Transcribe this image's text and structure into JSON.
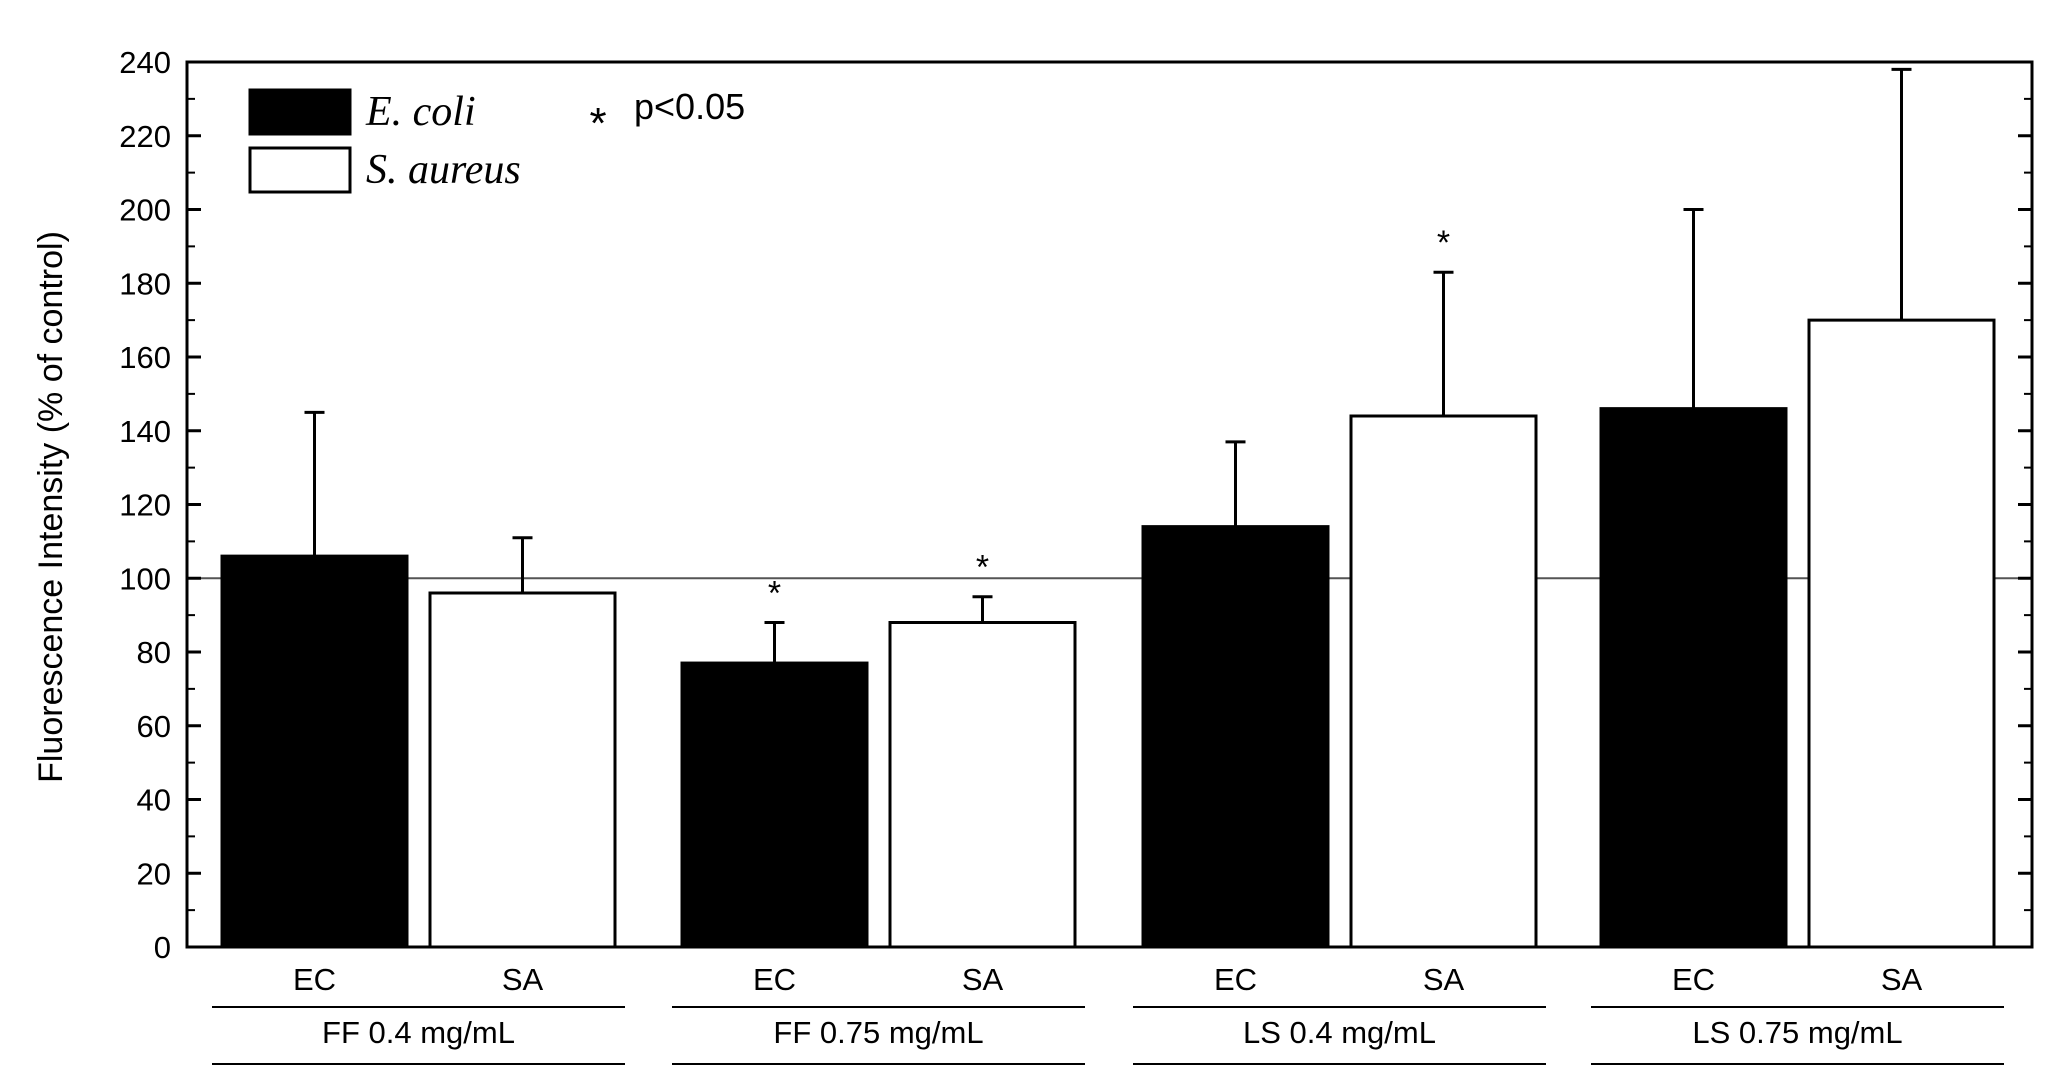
{
  "chart_data": {
    "type": "bar",
    "title": "",
    "xlabel": "",
    "ylabel": "Fluorescence Intensity (% of control)",
    "ylim": [
      0,
      240
    ],
    "yticks": [
      0,
      20,
      40,
      60,
      80,
      100,
      120,
      140,
      160,
      180,
      200,
      220,
      240
    ],
    "reference_line": 100,
    "grid": false,
    "legend_position": "top-left",
    "significance_note": "p<0.05",
    "significance_marker": "*",
    "legend": [
      {
        "label": "E. coli",
        "fill": "#000000"
      },
      {
        "label": "S. aureus",
        "fill": "#ffffff"
      }
    ],
    "groups": [
      {
        "label": "FF 0.4 mg/mL",
        "bars": [
          {
            "label": "EC",
            "value": 106,
            "error": 39,
            "significant": false,
            "fill": "#000000"
          },
          {
            "label": "SA",
            "value": 96,
            "error": 15,
            "significant": false,
            "fill": "#ffffff"
          }
        ]
      },
      {
        "label": "FF 0.75 mg/mL",
        "bars": [
          {
            "label": "EC",
            "value": 77,
            "error": 11,
            "significant": true,
            "fill": "#000000"
          },
          {
            "label": "SA",
            "value": 88,
            "error": 7,
            "significant": true,
            "fill": "#ffffff"
          }
        ]
      },
      {
        "label": "LS 0.4 mg/mL",
        "bars": [
          {
            "label": "EC",
            "value": 114,
            "error": 23,
            "significant": false,
            "fill": "#000000"
          },
          {
            "label": "SA",
            "value": 144,
            "error": 39,
            "significant": true,
            "fill": "#ffffff"
          }
        ]
      },
      {
        "label": "LS 0.75 mg/mL",
        "bars": [
          {
            "label": "EC",
            "value": 146,
            "error": 54,
            "significant": false,
            "fill": "#000000"
          },
          {
            "label": "SA",
            "value": 170,
            "error": 68,
            "significant": false,
            "fill": "#ffffff"
          }
        ]
      }
    ]
  }
}
